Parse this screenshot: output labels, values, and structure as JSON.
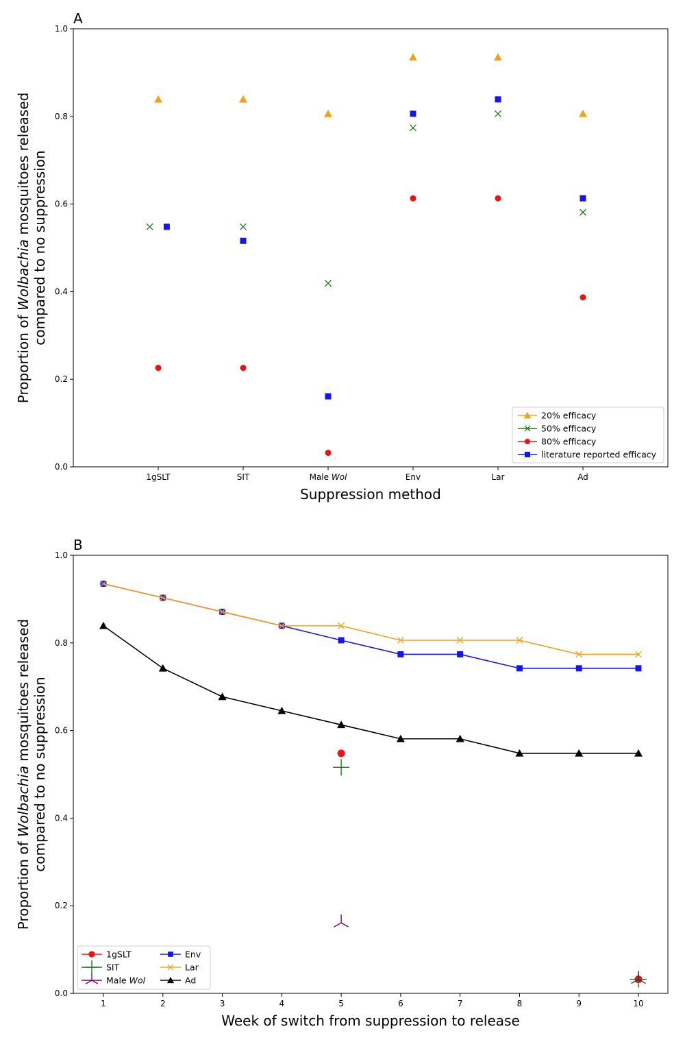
{
  "chart_data": [
    {
      "panel": "A",
      "type": "scatter",
      "categories": [
        "1gSLT",
        "SIT",
        "Male Wol",
        "Env",
        "Lar",
        "Ad"
      ],
      "xlabel": "Suppression method",
      "ylabel": [
        "Proportion of Wolbachia mosquitoes released",
        "compared to no suppression"
      ],
      "ylim": [
        0.0,
        1.0
      ],
      "yticks": [
        "0.0",
        "0.2",
        "0.4",
        "0.6",
        "0.8",
        "1.0"
      ],
      "legend_position": "bottom-right",
      "series": [
        {
          "name": "20% efficacy",
          "marker": "triangle",
          "color": "#f0a21e",
          "values": [
            0.839,
            0.839,
            0.806,
            0.935,
            0.935,
            0.806
          ]
        },
        {
          "name": "50% efficacy",
          "marker": "x",
          "color": "#1a7a1a",
          "values": [
            0.548,
            0.548,
            0.419,
            0.774,
            0.806,
            0.581
          ]
        },
        {
          "name": "80% efficacy",
          "marker": "circle",
          "color": "#ee1111",
          "values": [
            0.226,
            0.226,
            0.032,
            0.613,
            0.613,
            0.387
          ]
        },
        {
          "name": "literature reported efficacy",
          "marker": "square",
          "color": "#1515ee",
          "values": [
            0.548,
            0.516,
            0.161,
            0.806,
            0.839,
            0.613
          ]
        }
      ]
    },
    {
      "panel": "B",
      "type": "line",
      "x": [
        1,
        2,
        3,
        4,
        5,
        6,
        7,
        8,
        9,
        10
      ],
      "xlabel": "Week of switch from suppression to release",
      "ylabel": [
        "Proportion of Wolbachia mosquitoes released",
        "compared to no suppression"
      ],
      "ylim": [
        0.0,
        1.0
      ],
      "yticks": [
        "0.0",
        "0.2",
        "0.4",
        "0.6",
        "0.8",
        "1.0"
      ],
      "xticks": [
        "1",
        "2",
        "3",
        "4",
        "5",
        "6",
        "7",
        "8",
        "9",
        "10"
      ],
      "legend_position": "bottom-left",
      "series": [
        {
          "name": "1gSLT",
          "marker": "circle-big",
          "color": "#ee1111",
          "line": false,
          "x": [
            5,
            10
          ],
          "values": [
            0.548,
            0.032
          ]
        },
        {
          "name": "SIT",
          "marker": "plus",
          "color": "#1a7a1a",
          "line": false,
          "x": [
            5,
            10
          ],
          "values": [
            0.516,
            0.032
          ]
        },
        {
          "name": "Male Wol",
          "marker": "tri-down",
          "color": "#6a0a6a",
          "line": false,
          "x": [
            5,
            10
          ],
          "values": [
            0.161,
            0.032
          ]
        },
        {
          "name": "Env",
          "marker": "square",
          "color": "#1515ee",
          "line": true,
          "x": [
            1,
            2,
            3,
            4,
            5,
            6,
            7,
            8,
            9,
            10
          ],
          "values": [
            0.935,
            0.903,
            0.871,
            0.839,
            0.806,
            0.774,
            0.774,
            0.742,
            0.742,
            0.742
          ]
        },
        {
          "name": "Lar",
          "marker": "x",
          "color": "#f0a21e",
          "line": true,
          "x": [
            1,
            2,
            3,
            4,
            5,
            6,
            7,
            8,
            9,
            10
          ],
          "values": [
            0.935,
            0.903,
            0.871,
            0.839,
            0.839,
            0.806,
            0.806,
            0.806,
            0.774,
            0.774
          ]
        },
        {
          "name": "Ad",
          "marker": "triangle",
          "color": "#000000",
          "line": true,
          "x": [
            1,
            2,
            3,
            4,
            5,
            6,
            7,
            8,
            9,
            10
          ],
          "values": [
            0.839,
            0.742,
            0.677,
            0.645,
            0.613,
            0.581,
            0.581,
            0.548,
            0.548,
            0.548
          ]
        }
      ]
    }
  ]
}
